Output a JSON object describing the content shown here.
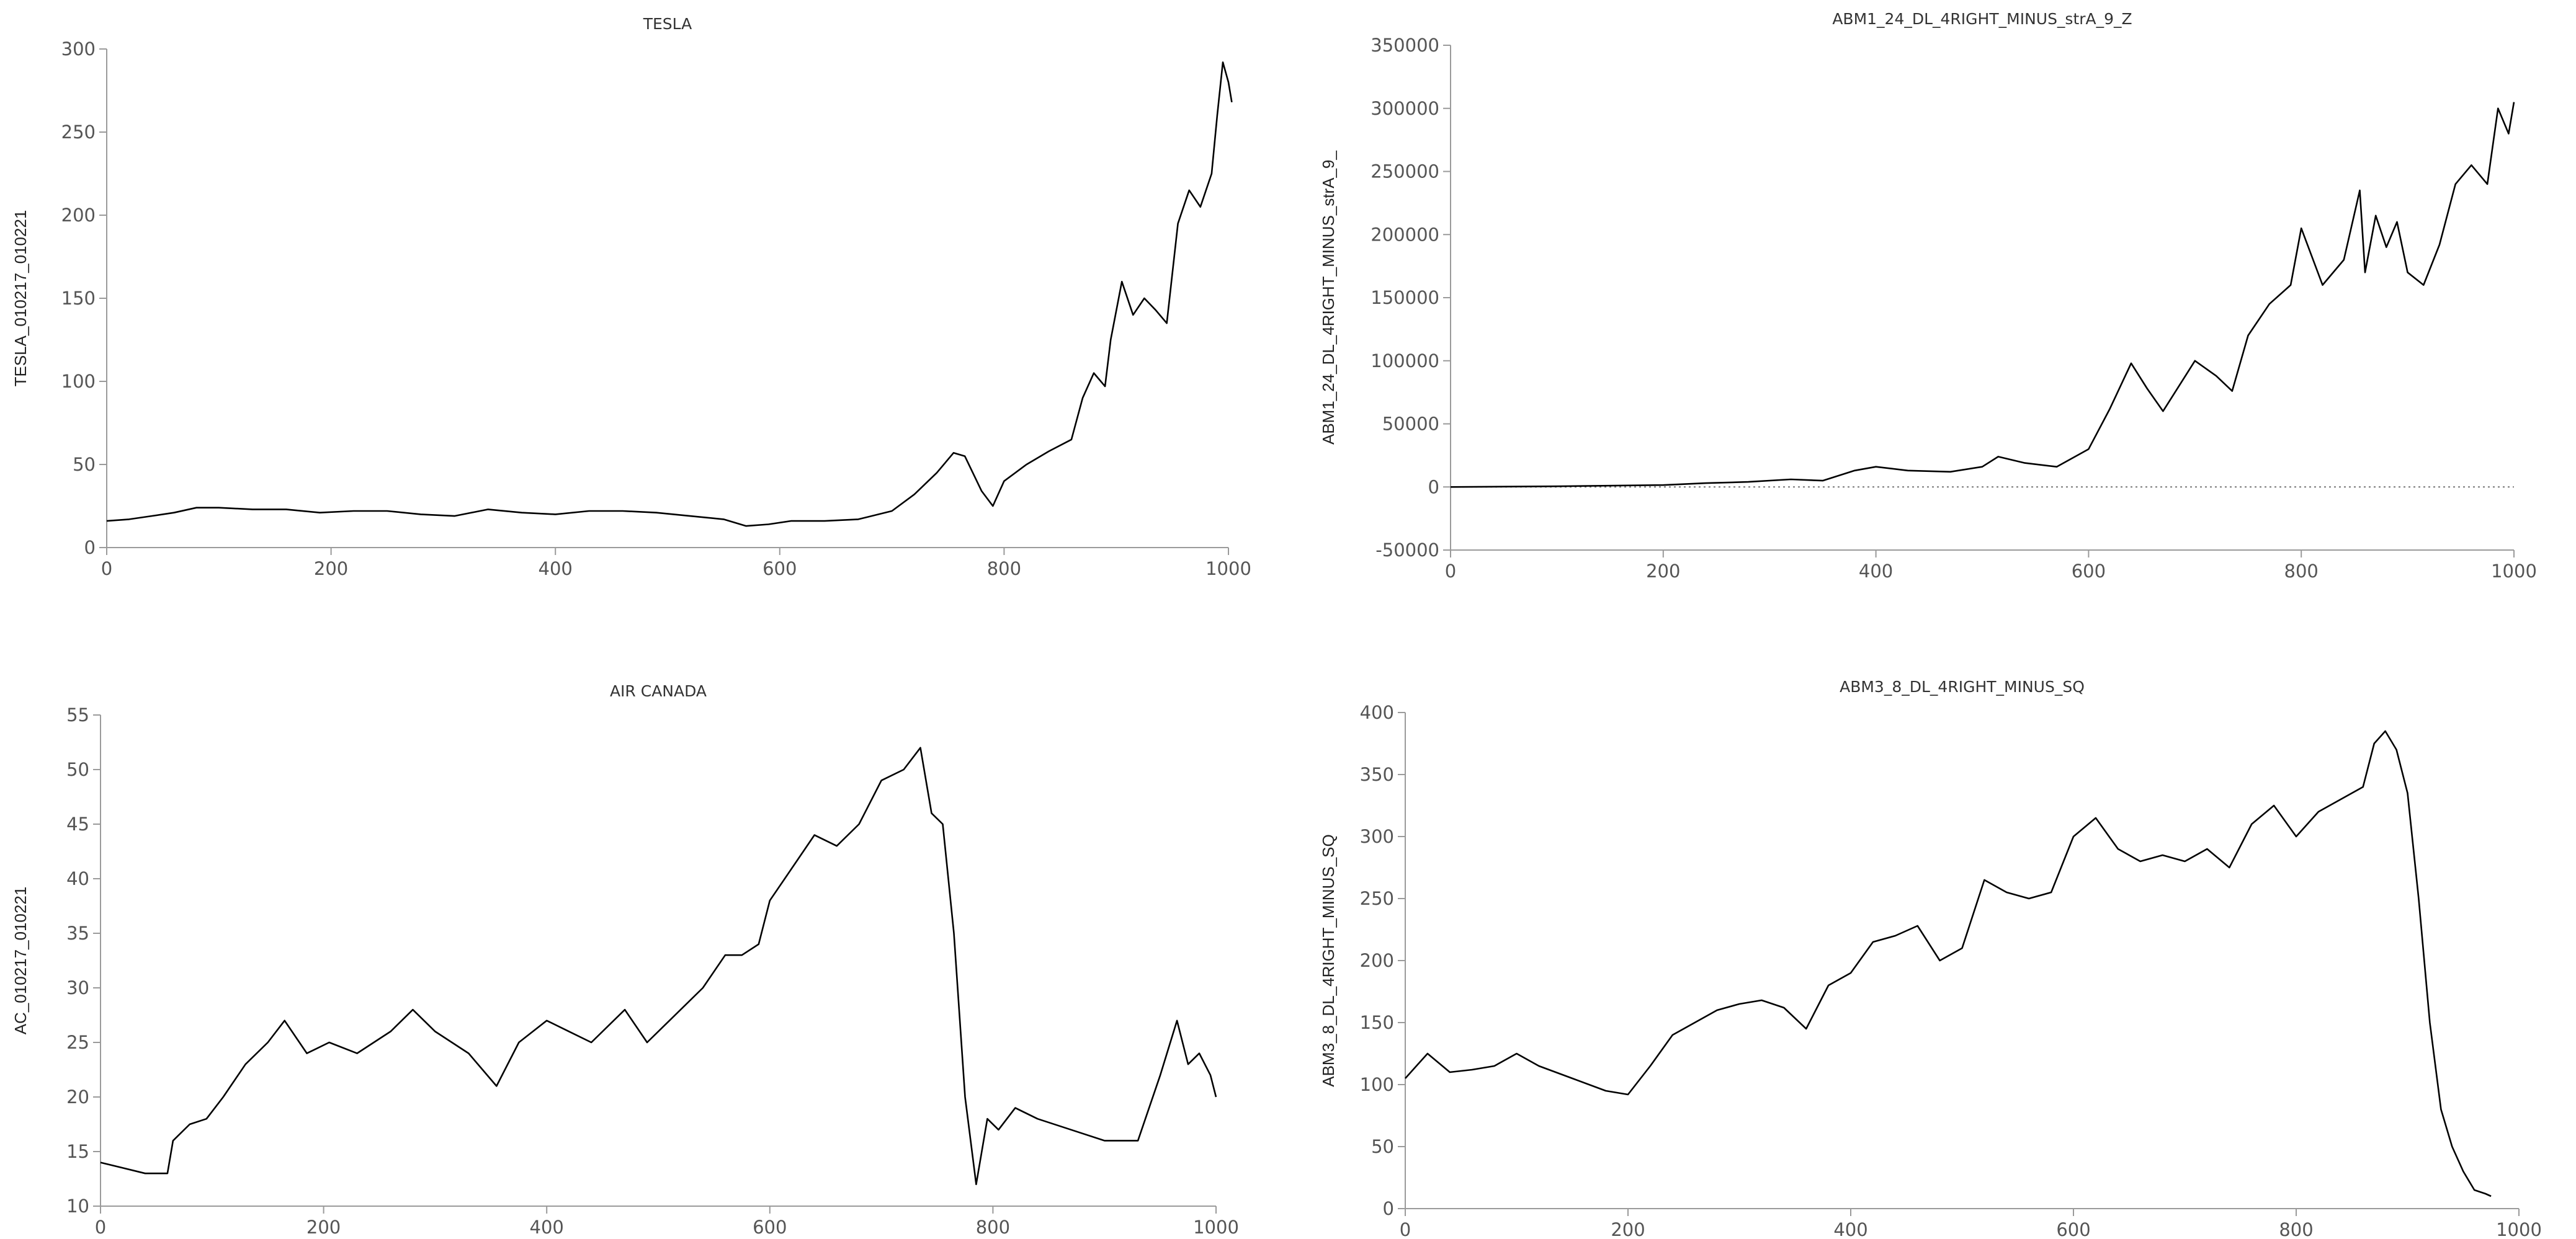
{
  "colors": {
    "line": "#000000",
    "axis": "#9a9a9a",
    "text": "#555555"
  },
  "chart_data": [
    {
      "type": "line",
      "title": "TESLA",
      "xlabel": "",
      "ylabel": "TESLA_010217_010221",
      "xlim": [
        0,
        1000
      ],
      "ylim": [
        0,
        300
      ],
      "xticks": [
        0,
        200,
        400,
        600,
        800,
        1000
      ],
      "yticks": [
        0,
        50,
        100,
        150,
        200,
        250,
        300
      ],
      "zero_line": false,
      "series": [
        {
          "x": [
            0,
            20,
            40,
            60,
            80,
            100,
            130,
            160,
            190,
            220,
            250,
            280,
            310,
            340,
            370,
            400,
            430,
            460,
            490,
            520,
            550,
            570,
            590,
            610,
            640,
            670,
            700,
            720,
            740,
            755,
            765,
            780,
            790,
            800,
            820,
            840,
            860,
            870,
            880,
            890,
            895,
            905,
            915,
            925,
            935,
            945,
            955,
            965,
            975,
            985,
            990,
            995,
            1000,
            1003
          ],
          "values": [
            16,
            17,
            19,
            21,
            24,
            24,
            23,
            23,
            21,
            22,
            22,
            20,
            19,
            23,
            21,
            20,
            22,
            22,
            21,
            19,
            17,
            13,
            14,
            16,
            16,
            17,
            22,
            32,
            45,
            57,
            55,
            34,
            25,
            40,
            50,
            58,
            65,
            90,
            105,
            97,
            125,
            160,
            140,
            150,
            143,
            135,
            195,
            215,
            205,
            225,
            260,
            292,
            280,
            268
          ]
        }
      ]
    },
    {
      "type": "line",
      "title": "ABM1_24_DL_4RIGHT_MINUS_strA_9_Z",
      "xlabel": "",
      "ylabel": "ABM1_24_DL_4RIGHT_MINUS_strA_9_",
      "xlim": [
        0,
        1000
      ],
      "ylim": [
        -50000,
        350000
      ],
      "xticks": [
        0,
        200,
        400,
        600,
        800,
        1000
      ],
      "yticks": [
        -50000,
        0,
        50000,
        100000,
        150000,
        200000,
        250000,
        300000,
        350000
      ],
      "zero_line": true,
      "series": [
        {
          "x": [
            0,
            100,
            200,
            240,
            280,
            320,
            350,
            380,
            400,
            430,
            470,
            500,
            515,
            540,
            570,
            600,
            620,
            640,
            655,
            670,
            700,
            720,
            735,
            750,
            770,
            790,
            800,
            820,
            840,
            855,
            860,
            870,
            880,
            890,
            900,
            915,
            930,
            945,
            960,
            975,
            985,
            995,
            1000
          ],
          "values": [
            0,
            500,
            1500,
            3000,
            4000,
            6000,
            5000,
            13000,
            16000,
            13000,
            12000,
            16000,
            24000,
            19000,
            16000,
            30000,
            62000,
            98000,
            78000,
            60000,
            100000,
            88000,
            76000,
            120000,
            145000,
            160000,
            205000,
            160000,
            180000,
            235000,
            170000,
            215000,
            190000,
            210000,
            170000,
            160000,
            192000,
            240000,
            255000,
            240000,
            300000,
            280000,
            305000
          ]
        }
      ]
    },
    {
      "type": "line",
      "title": "AIR CANADA",
      "xlabel": "",
      "ylabel": "AC_010217_010221",
      "xlim": [
        0,
        1000
      ],
      "ylim": [
        10,
        55
      ],
      "xticks": [
        0,
        200,
        400,
        600,
        800,
        1000
      ],
      "yticks": [
        10,
        15,
        20,
        25,
        30,
        35,
        40,
        45,
        50,
        55
      ],
      "zero_line": false,
      "series": [
        {
          "x": [
            0,
            20,
            40,
            60,
            65,
            80,
            95,
            110,
            130,
            150,
            165,
            185,
            205,
            230,
            260,
            280,
            300,
            330,
            355,
            375,
            400,
            420,
            440,
            470,
            490,
            510,
            540,
            560,
            575,
            590,
            600,
            620,
            640,
            660,
            680,
            700,
            720,
            735,
            745,
            755,
            765,
            775,
            785,
            795,
            805,
            820,
            840,
            870,
            900,
            930,
            950,
            965,
            975,
            985,
            995,
            1000
          ],
          "values": [
            14,
            13.5,
            13,
            13,
            16,
            17.5,
            18,
            20,
            23,
            25,
            27,
            24,
            25,
            24,
            26,
            28,
            26,
            24,
            21,
            25,
            27,
            26,
            25,
            28,
            25,
            27,
            30,
            33,
            33,
            34,
            38,
            41,
            44,
            43,
            45,
            49,
            50,
            52,
            46,
            45,
            35,
            20,
            12,
            18,
            17,
            19,
            18,
            17,
            16,
            16,
            22,
            27,
            23,
            24,
            22,
            20
          ]
        }
      ]
    },
    {
      "type": "line",
      "title": "ABM3_8_DL_4RIGHT_MINUS_SQ",
      "xlabel": "",
      "ylabel": "ABM3_8_DL_4RIGHT_MINUS_SQ",
      "xlim": [
        0,
        1000
      ],
      "ylim": [
        0,
        400
      ],
      "xticks": [
        0,
        200,
        400,
        600,
        800,
        1000
      ],
      "yticks": [
        0,
        50,
        100,
        150,
        200,
        250,
        300,
        350,
        400
      ],
      "zero_line": false,
      "series": [
        {
          "x": [
            0,
            20,
            40,
            60,
            80,
            100,
            120,
            150,
            180,
            200,
            220,
            240,
            260,
            280,
            300,
            320,
            340,
            360,
            380,
            400,
            420,
            440,
            460,
            480,
            500,
            520,
            540,
            560,
            580,
            600,
            620,
            640,
            660,
            680,
            700,
            720,
            740,
            760,
            780,
            800,
            820,
            840,
            860,
            870,
            880,
            890,
            900,
            910,
            920,
            930,
            940,
            950,
            960,
            970,
            975
          ],
          "values": [
            105,
            125,
            110,
            112,
            115,
            125,
            115,
            105,
            95,
            92,
            115,
            140,
            150,
            160,
            165,
            168,
            162,
            145,
            180,
            190,
            215,
            220,
            228,
            200,
            210,
            265,
            255,
            250,
            255,
            300,
            315,
            290,
            280,
            285,
            280,
            290,
            275,
            310,
            325,
            300,
            320,
            330,
            340,
            375,
            385,
            370,
            335,
            250,
            150,
            80,
            50,
            30,
            15,
            12,
            10
          ]
        }
      ]
    }
  ]
}
